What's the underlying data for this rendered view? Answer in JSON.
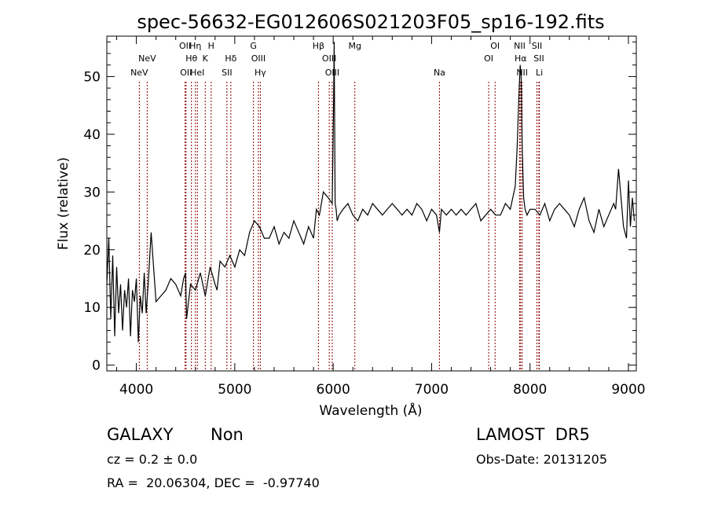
{
  "chart_data": {
    "type": "line",
    "title": "spec-56632-EG012606S021203F05_sp16-192.fits",
    "xlabel": "Wavelength (Å)",
    "ylabel": "Flux (relative)",
    "xlim": [
      3700,
      9080
    ],
    "ylim": [
      -1,
      57
    ],
    "x_ticks": [
      4000,
      5000,
      6000,
      7000,
      8000,
      9000
    ],
    "y_ticks": [
      0,
      10,
      20,
      30,
      40,
      50
    ],
    "grid": false,
    "line_color": "#000000",
    "marker_color": "#8b0000",
    "series": [
      {
        "x": [
          3700,
          3720,
          3740,
          3760,
          3780,
          3800,
          3820,
          3840,
          3860,
          3880,
          3900,
          3920,
          3940,
          3960,
          3980,
          4000,
          4020,
          4040,
          4060,
          4080,
          4100,
          4120,
          4150,
          4200,
          4250,
          4300,
          4350,
          4400,
          4450,
          4480,
          4500,
          4510,
          4550,
          4600,
          4650,
          4700,
          4750,
          4800,
          4820,
          4850,
          4900,
          4950,
          5000,
          5050,
          5100,
          5150,
          5200,
          5250,
          5300,
          5350,
          5400,
          5450,
          5500,
          5550,
          5600,
          5650,
          5700,
          5750,
          5800,
          5830,
          5860,
          5900,
          5950,
          5990,
          6005,
          6010,
          6020,
          6030,
          6040,
          6060,
          6100,
          6150,
          6200,
          6250,
          6300,
          6350,
          6400,
          6450,
          6500,
          6550,
          6600,
          6650,
          6700,
          6750,
          6800,
          6850,
          6900,
          6950,
          7000,
          7050,
          7080,
          7100,
          7150,
          7200,
          7250,
          7300,
          7350,
          7400,
          7450,
          7500,
          7550,
          7600,
          7650,
          7700,
          7750,
          7800,
          7850,
          7870,
          7890,
          7900,
          7910,
          7920,
          7935,
          7950,
          7970,
          8000,
          8050,
          8100,
          8150,
          8200,
          8250,
          8300,
          8350,
          8400,
          8450,
          8500,
          8550,
          8600,
          8650,
          8700,
          8750,
          8800,
          8850,
          8870,
          8900,
          8950,
          8980,
          9000,
          9020,
          9040,
          9060
        ],
        "y": [
          14,
          22,
          8,
          19,
          5,
          17,
          9,
          14,
          6,
          13,
          10,
          15,
          5,
          13,
          11,
          15,
          4,
          12,
          9,
          16,
          9,
          14,
          23,
          11,
          12,
          13,
          15,
          14,
          12,
          15,
          16,
          8,
          14,
          13,
          16,
          12,
          17,
          14,
          13,
          18,
          17,
          19,
          17,
          20,
          19,
          23,
          25,
          24,
          22,
          22,
          24,
          21,
          23,
          22,
          25,
          23,
          21,
          24,
          22,
          27,
          26,
          30,
          29,
          28,
          47,
          56,
          28,
          27,
          25,
          26,
          27,
          28,
          26,
          25,
          27,
          26,
          28,
          27,
          26,
          27,
          28,
          27,
          26,
          27,
          26,
          28,
          27,
          25,
          27,
          26,
          23,
          27,
          26,
          27,
          26,
          27,
          26,
          27,
          28,
          25,
          26,
          27,
          26,
          26,
          28,
          27,
          31,
          38,
          48,
          52,
          50,
          38,
          29,
          27,
          26,
          27,
          27,
          26,
          28,
          25,
          27,
          28,
          27,
          26,
          24,
          27,
          29,
          25,
          23,
          27,
          24,
          26,
          28,
          27,
          34,
          24,
          22,
          32,
          24,
          29,
          25
        ]
      }
    ],
    "lines": [
      {
        "x": 4030,
        "label": "NeV",
        "row": 3
      },
      {
        "x": 4110,
        "label": "NeV",
        "row": 2
      },
      {
        "x": 4495,
        "label": "OII",
        "row": 1
      },
      {
        "x": 4505,
        "label": "OII",
        "row": 3
      },
      {
        "x": 4560,
        "label": "Hθ",
        "row": 2
      },
      {
        "x": 4600,
        "label": "Hη",
        "row": 1
      },
      {
        "x": 4620,
        "label": "HeI",
        "row": 3
      },
      {
        "x": 4700,
        "label": "K",
        "row": 2
      },
      {
        "x": 4760,
        "label": "H",
        "row": 1
      },
      {
        "x": 4920,
        "label": "SII",
        "row": 3
      },
      {
        "x": 4960,
        "label": "Hδ",
        "row": 2
      },
      {
        "x": 5190,
        "label": "G",
        "row": 1
      },
      {
        "x": 5240,
        "label": "OIII",
        "row": 2
      },
      {
        "x": 5260,
        "label": "Hγ",
        "row": 3
      },
      {
        "x": 5850,
        "label": "Hβ",
        "row": 1
      },
      {
        "x": 5960,
        "label": "OIII",
        "row": 2
      },
      {
        "x": 5990,
        "label": "OIII",
        "row": 3
      },
      {
        "x": 6220,
        "label": "Mg",
        "row": 1
      },
      {
        "x": 7080,
        "label": "Na",
        "row": 3
      },
      {
        "x": 7580,
        "label": "OI",
        "row": 2
      },
      {
        "x": 7645,
        "label": "OI",
        "row": 1
      },
      {
        "x": 7895,
        "label": "NII",
        "row": 1
      },
      {
        "x": 7905,
        "label": "Hα",
        "row": 2
      },
      {
        "x": 7920,
        "label": "NII",
        "row": 3
      },
      {
        "x": 8070,
        "label": "SII",
        "row": 1
      },
      {
        "x": 8090,
        "label": "SII",
        "row": 2
      },
      {
        "x": 8095,
        "label": "Li",
        "row": 3
      }
    ]
  },
  "info": {
    "class": "GALAXY",
    "subclass": "Non",
    "survey": "LAMOST  DR5",
    "cz": "cz = 0.2 ± 0.0",
    "obs_date": "Obs-Date: 20131205",
    "radec": "RA =  20.06304, DEC =  -0.97740"
  }
}
